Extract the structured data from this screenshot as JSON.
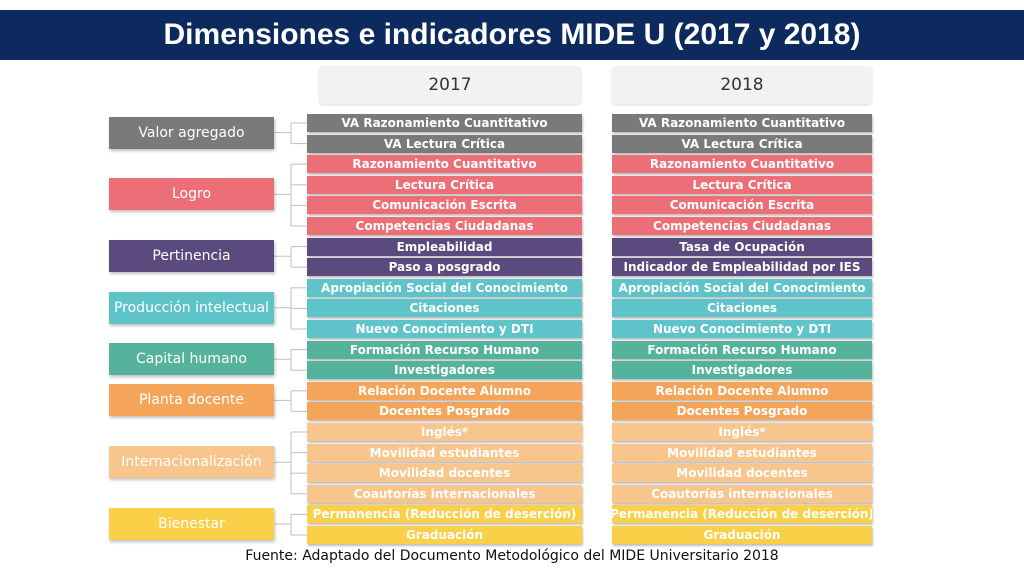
{
  "title": "Dimensiones e indicadores MIDE U (2017 y 2018)",
  "years": [
    "2017",
    "2018"
  ],
  "colors": {
    "valor": "#7a7a7a",
    "logro": "#ec6f78",
    "pertinencia": "#5b4a7e",
    "produccion": "#5fc4ca",
    "capital": "#55b39b",
    "planta": "#f5a55a",
    "intern": "#f8c58c",
    "bienestar": "#fad048"
  },
  "dimensions": [
    {
      "label": "Valor agregado",
      "color_key": "valor",
      "indicators_2017": [
        "VA Razonamiento Cuantitativo",
        "VA Lectura Crítica"
      ],
      "indicators_2018": [
        "VA Razonamiento Cuantitativo",
        "VA Lectura Crítica"
      ]
    },
    {
      "label": "Logro",
      "color_key": "logro",
      "indicators_2017": [
        "Razonamiento Cuantitativo",
        "Lectura Crítica",
        "Comunicación Escrita",
        "Competencias Ciudadanas"
      ],
      "indicators_2018": [
        "Razonamiento Cuantitativo",
        "Lectura Crítica",
        "Comunicación Escrita",
        "Competencias Ciudadanas"
      ]
    },
    {
      "label": "Pertinencia",
      "color_key": "pertinencia",
      "indicators_2017": [
        "Empleabilidad",
        "Paso a posgrado"
      ],
      "indicators_2018": [
        "Tasa de Ocupación",
        "Indicador de Empleabilidad por IES"
      ]
    },
    {
      "label": "Producción intelectual",
      "color_key": "produccion",
      "indicators_2017": [
        "Apropiación Social del Conocimiento",
        "Citaciones",
        "Nuevo Conocimiento y DTI"
      ],
      "indicators_2018": [
        "Apropiación Social del Conocimiento",
        "Citaciones",
        "Nuevo Conocimiento y DTI"
      ]
    },
    {
      "label": "Capital humano",
      "color_key": "capital",
      "indicators_2017": [
        "Formación Recurso Humano",
        "Investigadores"
      ],
      "indicators_2018": [
        "Formación Recurso Humano",
        "Investigadores"
      ]
    },
    {
      "label": "Planta docente",
      "color_key": "planta",
      "indicators_2017": [
        "Relación Docente Alumno",
        "Docentes Posgrado"
      ],
      "indicators_2018": [
        "Relación Docente Alumno",
        "Docentes Posgrado"
      ]
    },
    {
      "label": "Internacionalización",
      "color_key": "intern",
      "indicators_2017": [
        "Inglés*",
        "Movilidad estudiantes",
        "Movilidad docentes",
        "Coautorías internacionales"
      ],
      "indicators_2018": [
        "Inglés*",
        "Movilidad estudiantes",
        "Movilidad docentes",
        "Coautorías internacionales"
      ]
    },
    {
      "label": "Bienestar",
      "color_key": "bienestar",
      "indicators_2017": [
        "Permanencia (Reducción de deserción)",
        "Graduación"
      ],
      "indicators_2018": [
        "Permanencia (Reducción de deserción)",
        "Graduación"
      ]
    }
  ],
  "source": "Fuente: Adaptado del Documento Metodológico del MIDE Universitario 2018"
}
